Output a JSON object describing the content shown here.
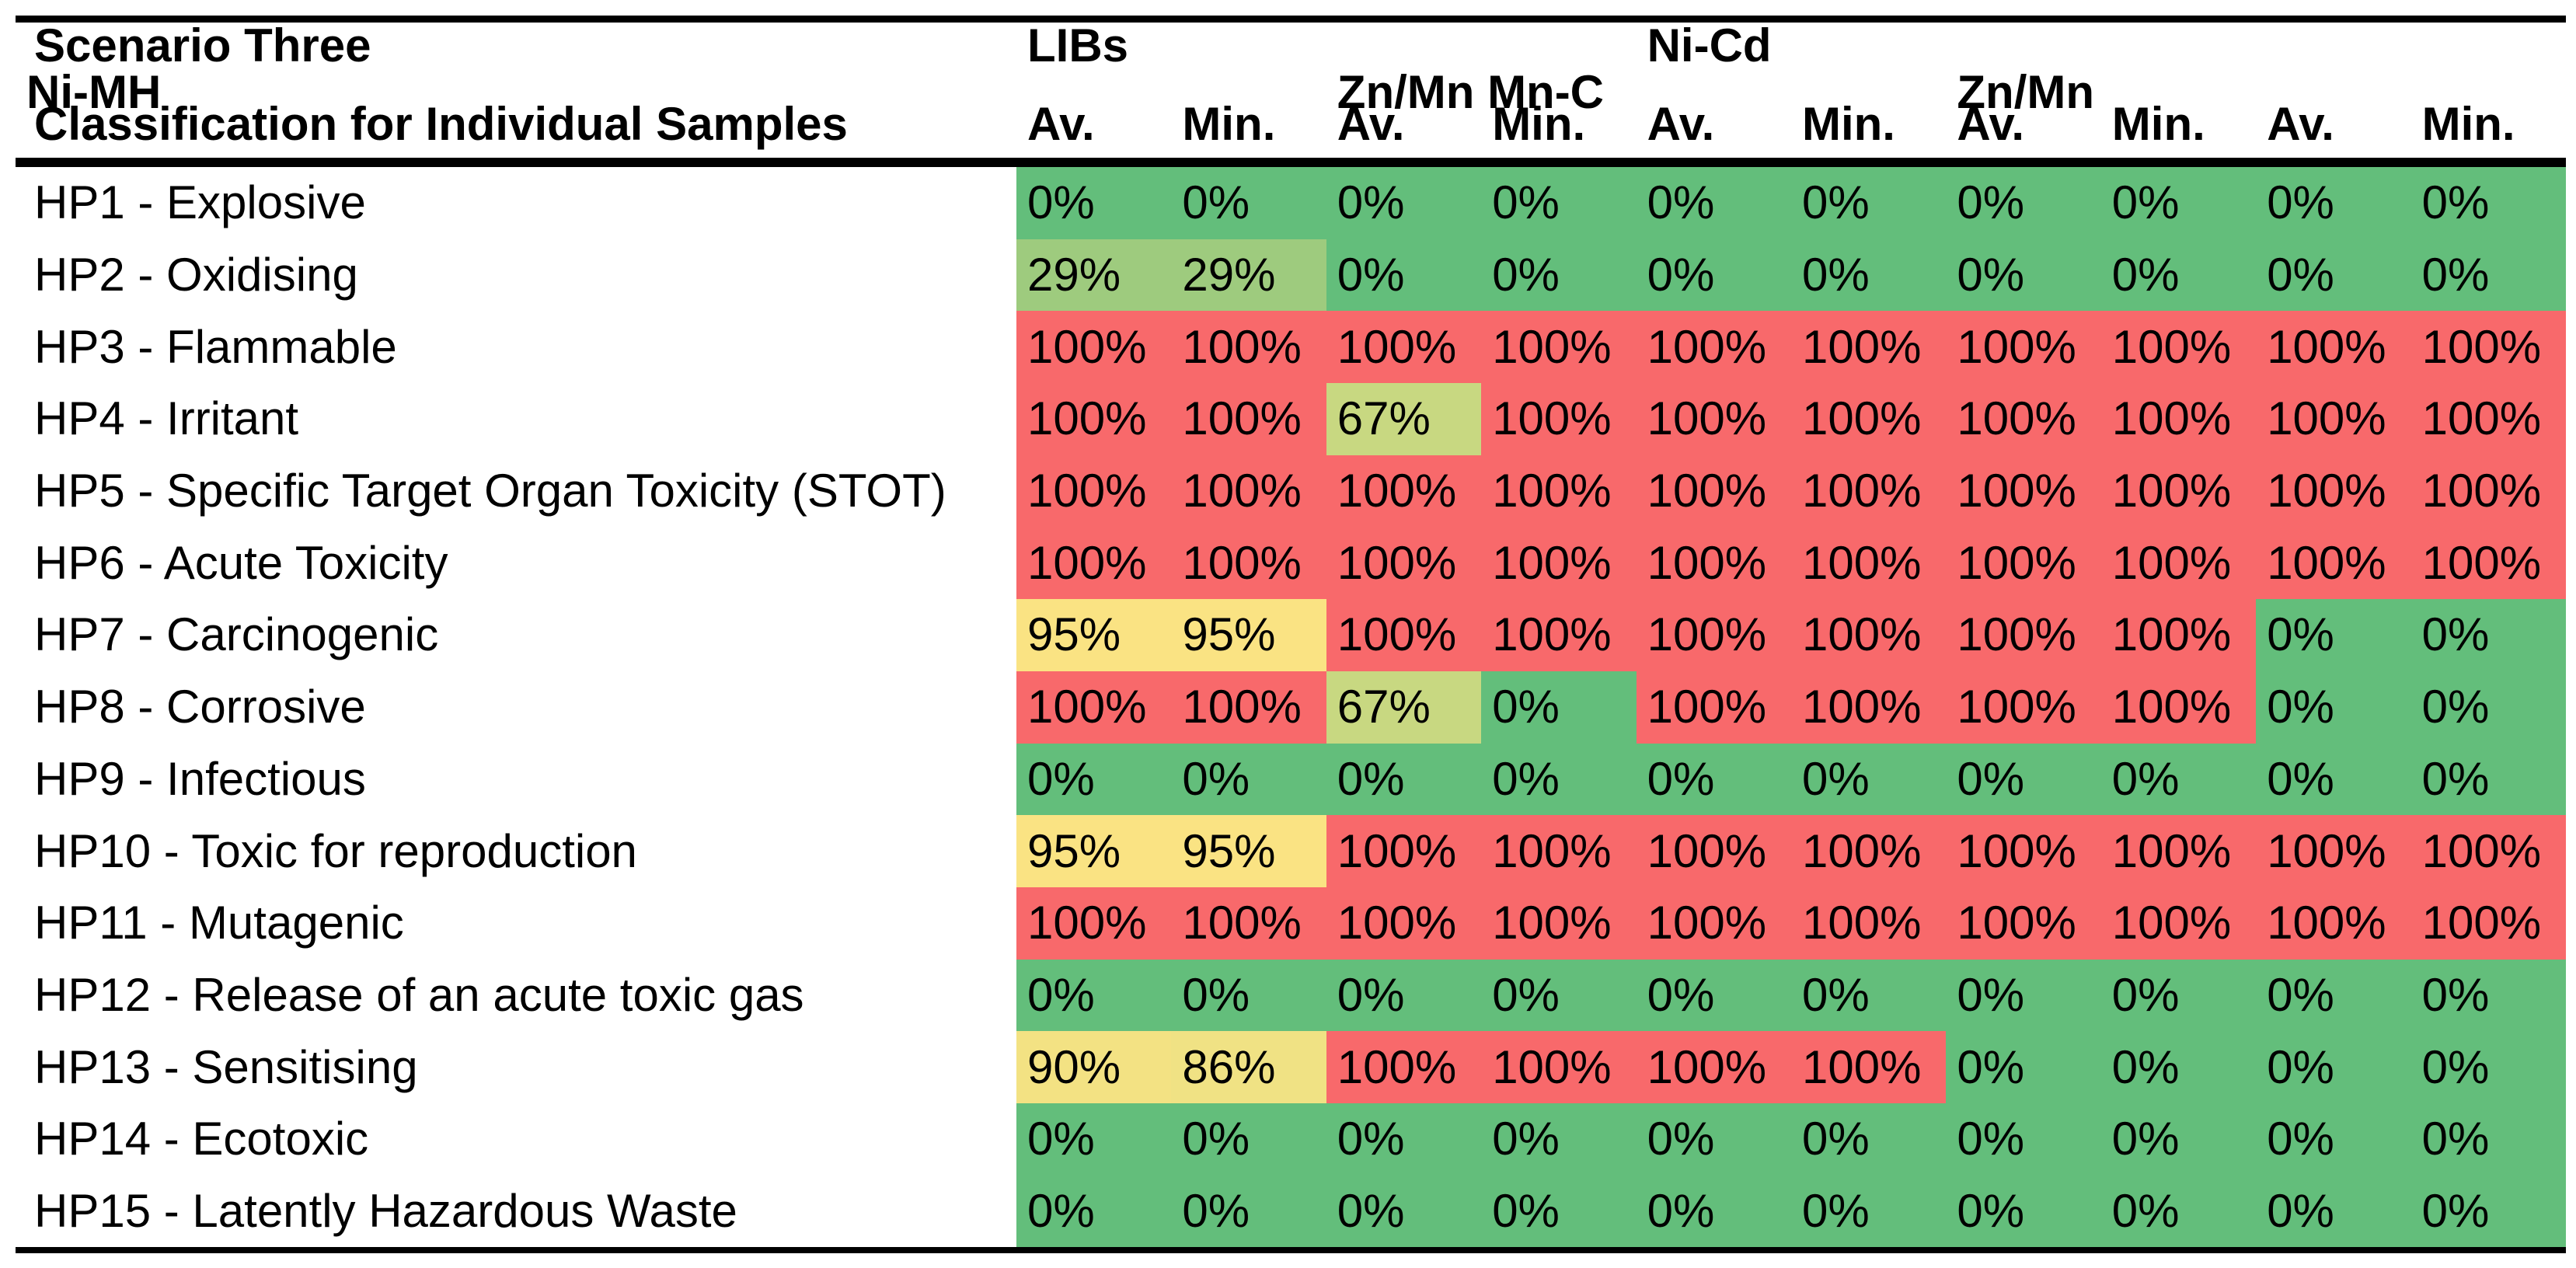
{
  "table": {
    "title_line1": "Scenario Three",
    "title_line2": "Classification for Individual Samples",
    "groups": [
      {
        "label": "LIBs"
      },
      {
        "label": "Ni-Cd"
      },
      {
        "label": "Ni-MH"
      },
      {
        "label": "Zn/Mn Mn-C"
      },
      {
        "label": "Zn/Mn"
      }
    ],
    "subheaders": [
      "Av.",
      "Min.",
      "Av.",
      "Min.",
      "Av.",
      "Min.",
      "Av.",
      "Min.",
      "Av.",
      "Min."
    ],
    "rows": [
      {
        "label": "HP1 - Explosive",
        "values": [
          "0%",
          "0%",
          "0%",
          "0%",
          "0%",
          "0%",
          "0%",
          "0%",
          "0%",
          "0%"
        ]
      },
      {
        "label": "HP2 - Oxidising",
        "values": [
          "29%",
          "29%",
          "0%",
          "0%",
          "0%",
          "0%",
          "0%",
          "0%",
          "0%",
          "0%"
        ]
      },
      {
        "label": "HP3 - Flammable",
        "values": [
          "100%",
          "100%",
          "100%",
          "100%",
          "100%",
          "100%",
          "100%",
          "100%",
          "100%",
          "100%"
        ]
      },
      {
        "label": "HP4 - Irritant",
        "values": [
          "100%",
          "100%",
          "67%",
          "100%",
          "100%",
          "100%",
          "100%",
          "100%",
          "100%",
          "100%"
        ]
      },
      {
        "label": "HP5 - Specific Target Organ Toxicity (STOT)",
        "values": [
          "100%",
          "100%",
          "100%",
          "100%",
          "100%",
          "100%",
          "100%",
          "100%",
          "100%",
          "100%"
        ]
      },
      {
        "label": "HP6 - Acute Toxicity",
        "values": [
          "100%",
          "100%",
          "100%",
          "100%",
          "100%",
          "100%",
          "100%",
          "100%",
          "100%",
          "100%"
        ]
      },
      {
        "label": "HP7 - Carcinogenic",
        "values": [
          "95%",
          "95%",
          "100%",
          "100%",
          "100%",
          "100%",
          "100%",
          "100%",
          "0%",
          "0%"
        ]
      },
      {
        "label": "HP8 - Corrosive",
        "values": [
          "100%",
          "100%",
          "67%",
          "0%",
          "100%",
          "100%",
          "100%",
          "100%",
          "0%",
          "0%"
        ]
      },
      {
        "label": "HP9 - Infectious",
        "values": [
          "0%",
          "0%",
          "0%",
          "0%",
          "0%",
          "0%",
          "0%",
          "0%",
          "0%",
          "0%"
        ]
      },
      {
        "label": "HP10 - Toxic for reproduction",
        "values": [
          "95%",
          "95%",
          "100%",
          "100%",
          "100%",
          "100%",
          "100%",
          "100%",
          "100%",
          "100%"
        ]
      },
      {
        "label": "HP11 - Mutagenic",
        "values": [
          "100%",
          "100%",
          "100%",
          "100%",
          "100%",
          "100%",
          "100%",
          "100%",
          "100%",
          "100%"
        ]
      },
      {
        "label": "HP12 - Release of an acute toxic gas",
        "values": [
          "0%",
          "0%",
          "0%",
          "0%",
          "0%",
          "0%",
          "0%",
          "0%",
          "0%",
          "0%"
        ]
      },
      {
        "label": "HP13 - Sensitising",
        "values": [
          "90%",
          "86%",
          "100%",
          "100%",
          "100%",
          "100%",
          "0%",
          "0%",
          "0%",
          "0%"
        ]
      },
      {
        "label": "HP14 - Ecotoxic",
        "values": [
          "0%",
          "0%",
          "0%",
          "0%",
          "0%",
          "0%",
          "0%",
          "0%",
          "0%",
          "0%"
        ]
      },
      {
        "label": "HP15 - Latently Hazardous Waste",
        "values": [
          "0%",
          "0%",
          "0%",
          "0%",
          "0%",
          "0%",
          "0%",
          "0%",
          "0%",
          "0%"
        ]
      }
    ],
    "colors": {
      "0%": "#63BE7B",
      "29%": "#9ECB7E",
      "67%": "#C8D881",
      "86%": "#F0E284",
      "90%": "#F3E283",
      "95%": "#FAE383",
      "100%": "#F8696B"
    }
  },
  "chart_data": {
    "type": "heatmap",
    "title": "Scenario Three",
    "subtitle": "Classification for Individual Samples",
    "columns": [
      "LIBs Av.",
      "LIBs Min.",
      "Ni-Cd Av.",
      "Ni-Cd Min.",
      "Ni-MH Av.",
      "Ni-MH Min.",
      "Zn/Mn Mn-C Av.",
      "Zn/Mn Mn-C Min.",
      "Zn/Mn Av.",
      "Zn/Mn Min."
    ],
    "row_labels": [
      "HP1 - Explosive",
      "HP2 - Oxidising",
      "HP3 - Flammable",
      "HP4 - Irritant",
      "HP5 - Specific Target Organ Toxicity (STOT)",
      "HP6 - Acute Toxicity",
      "HP7 - Carcinogenic",
      "HP8 - Corrosive",
      "HP9 - Infectious",
      "HP10 - Toxic for reproduction",
      "HP11 - Mutagenic",
      "HP12 - Release of an acute toxic gas",
      "HP13 - Sensitising",
      "HP14 - Ecotoxic",
      "HP15 - Latently Hazardous Waste"
    ],
    "values_percent": [
      [
        0,
        0,
        0,
        0,
        0,
        0,
        0,
        0,
        0,
        0
      ],
      [
        29,
        29,
        0,
        0,
        0,
        0,
        0,
        0,
        0,
        0
      ],
      [
        100,
        100,
        100,
        100,
        100,
        100,
        100,
        100,
        100,
        100
      ],
      [
        100,
        100,
        67,
        100,
        100,
        100,
        100,
        100,
        100,
        100
      ],
      [
        100,
        100,
        100,
        100,
        100,
        100,
        100,
        100,
        100,
        100
      ],
      [
        100,
        100,
        100,
        100,
        100,
        100,
        100,
        100,
        100,
        100
      ],
      [
        95,
        95,
        100,
        100,
        100,
        100,
        100,
        100,
        0,
        0
      ],
      [
        100,
        100,
        67,
        0,
        100,
        100,
        100,
        100,
        0,
        0
      ],
      [
        0,
        0,
        0,
        0,
        0,
        0,
        0,
        0,
        0,
        0
      ],
      [
        95,
        95,
        100,
        100,
        100,
        100,
        100,
        100,
        100,
        100
      ],
      [
        100,
        100,
        100,
        100,
        100,
        100,
        100,
        100,
        100,
        100
      ],
      [
        0,
        0,
        0,
        0,
        0,
        0,
        0,
        0,
        0,
        0
      ],
      [
        90,
        86,
        100,
        100,
        100,
        100,
        0,
        0,
        0,
        0
      ],
      [
        0,
        0,
        0,
        0,
        0,
        0,
        0,
        0,
        0,
        0
      ],
      [
        0,
        0,
        0,
        0,
        0,
        0,
        0,
        0,
        0,
        0
      ]
    ],
    "color_scale": {
      "low": {
        "value": 0,
        "color": "#63BE7B"
      },
      "mid": {
        "value": 95,
        "color": "#FAE383"
      },
      "high": {
        "value": 100,
        "color": "#F8696B"
      }
    },
    "legend_position": "none",
    "grid": false
  }
}
